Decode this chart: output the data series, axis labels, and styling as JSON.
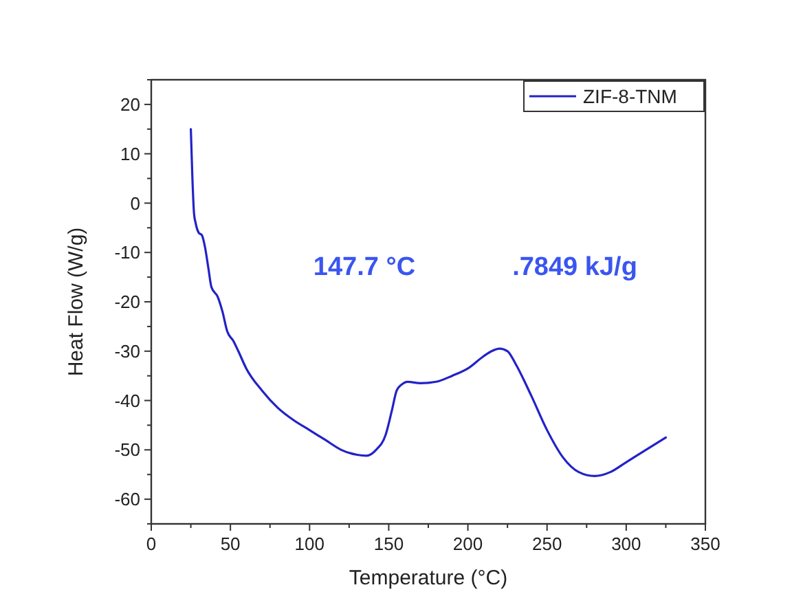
{
  "chart_data": {
    "type": "line",
    "xlabel": "Temperature (°C)",
    "ylabel": "Heat Flow (W/g)",
    "xlim": [
      0,
      350
    ],
    "ylim": [
      -65,
      25
    ],
    "xticks": [
      0,
      {
        "value": 25,
        "label": null
      },
      50,
      {
        "value": 75,
        "label": null
      },
      100,
      {
        "value": 125,
        "label": null
      },
      150,
      {
        "value": 175,
        "label": null
      },
      200,
      {
        "value": 225,
        "label": null
      },
      250,
      {
        "value": 275,
        "label": null
      },
      300,
      {
        "value": 325,
        "label": null
      },
      350
    ],
    "yticks": [
      {
        "value": -65,
        "label": null
      },
      -60,
      {
        "value": -55,
        "label": null
      },
      -50,
      {
        "value": -45,
        "label": null
      },
      -40,
      {
        "value": -35,
        "label": null
      },
      -30,
      {
        "value": -25,
        "label": null
      },
      -20,
      {
        "value": -15,
        "label": null
      },
      -10,
      {
        "value": -5,
        "label": null
      },
      0,
      {
        "value": 5,
        "label": null
      },
      10,
      {
        "value": 15,
        "label": null
      },
      20,
      {
        "value": 25,
        "label": null
      }
    ],
    "legend": "top right",
    "grid": false,
    "marker": "none",
    "line_style": "solid",
    "annotations": [
      "147.7 °C",
      ".7849 kJ/g"
    ],
    "series": [
      {
        "name": "ZIF-8-TNM",
        "color": "#2222c8",
        "x": [
          25,
          26,
          27,
          28,
          30,
          32,
          34,
          36,
          38,
          42,
          45,
          48,
          52,
          55,
          60,
          70,
          80,
          90,
          100,
          110,
          120,
          130,
          136,
          142,
          148,
          152,
          155,
          158,
          162,
          170,
          180,
          190,
          200,
          210,
          215,
          220,
          225,
          230,
          240,
          250,
          260,
          270,
          280,
          290,
          300,
          310,
          325
        ],
        "values": [
          15,
          5,
          -2,
          -4,
          -6,
          -6.5,
          -9,
          -13,
          -17,
          -19,
          -22,
          -26,
          -28,
          -30,
          -33.5,
          -38,
          -41.5,
          -44,
          -46,
          -48,
          -50,
          -51,
          -51.2,
          -50,
          -47,
          -42,
          -38,
          -36.8,
          -36.2,
          -36.5,
          -36.2,
          -35,
          -33.5,
          -31,
          -30,
          -29.5,
          -30,
          -32.5,
          -39,
          -46,
          -51.5,
          -54.5,
          -55.3,
          -54.5,
          -52.5,
          -50.5,
          -47.5
        ]
      }
    ]
  }
}
